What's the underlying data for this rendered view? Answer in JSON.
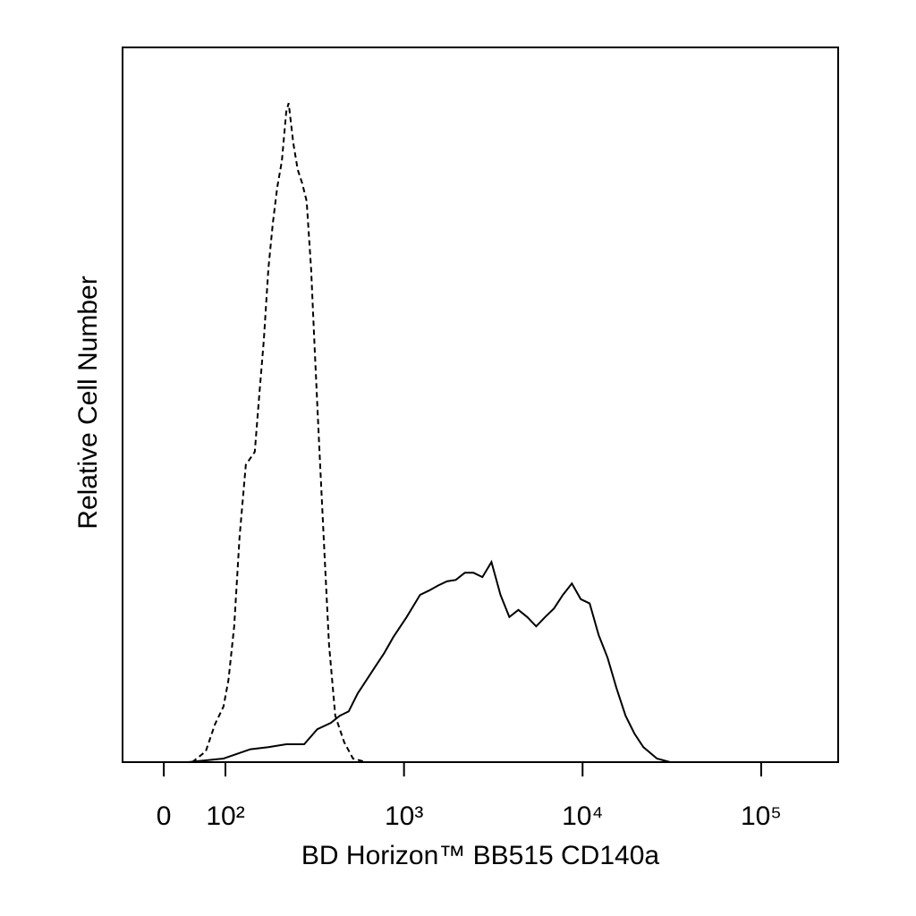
{
  "chart_data": {
    "type": "line",
    "xlabel": "BD Horizon™ BB515 CD140a",
    "ylabel": "Relative Cell Number",
    "xscale": "biexponential",
    "xlim": [
      -67,
      270000
    ],
    "ylim": [
      0,
      100
    ],
    "xticks": [
      {
        "value": 0,
        "label": "0"
      },
      {
        "value": 100,
        "label": "10²"
      },
      {
        "value": 1000,
        "label": "10³"
      },
      {
        "value": 10000,
        "label": "10⁴"
      },
      {
        "value": 100000,
        "label": "10⁵"
      }
    ],
    "series": [
      {
        "color": "#000000",
        "dash": true,
        "x": [
          46,
          68,
          83,
          97,
          104,
          112,
          120,
          130,
          146,
          155,
          164,
          174,
          184,
          195,
          207,
          219,
          226,
          240,
          254,
          269,
          285,
          302,
          316,
          335,
          359,
          380,
          412,
          462,
          518,
          617
        ],
        "values": [
          0,
          1.5,
          5.3,
          7.8,
          11.5,
          19,
          31.5,
          41.6,
          43.4,
          51.6,
          59,
          69,
          75.3,
          80.4,
          84.1,
          91,
          92.2,
          86.6,
          82.9,
          81,
          78.5,
          69,
          57.8,
          44.4,
          29,
          16.5,
          6.5,
          2.8,
          0.5,
          0
        ]
      },
      {
        "color": "#000000",
        "dash": false,
        "x": [
          39,
          97,
          138,
          174,
          219,
          276,
          327,
          389,
          437,
          490,
          550,
          617,
          692,
          776,
          871,
          1035,
          1230,
          1380,
          1550,
          1740,
          1950,
          2190,
          2450,
          2750,
          3090,
          3470,
          3890,
          4370,
          4900,
          5500,
          6170,
          6920,
          7760,
          8710,
          9770,
          10960,
          12300,
          13800,
          15500,
          17400,
          19500,
          21900,
          26100,
          30900,
          245000
        ],
        "values": [
          0,
          0.5,
          1.8,
          2.1,
          2.5,
          2.5,
          4.6,
          5.5,
          6.5,
          7.1,
          9.6,
          11.5,
          13.4,
          15.3,
          17.5,
          20.3,
          23.4,
          24,
          24.7,
          25.3,
          25.5,
          26.5,
          26.5,
          25.9,
          28,
          23.4,
          20.3,
          21.3,
          20.3,
          19,
          20.3,
          21.5,
          23.4,
          25,
          22.8,
          22.2,
          17.8,
          14.6,
          10.3,
          6.5,
          4,
          2.1,
          0.5,
          0,
          0
        ]
      }
    ]
  }
}
